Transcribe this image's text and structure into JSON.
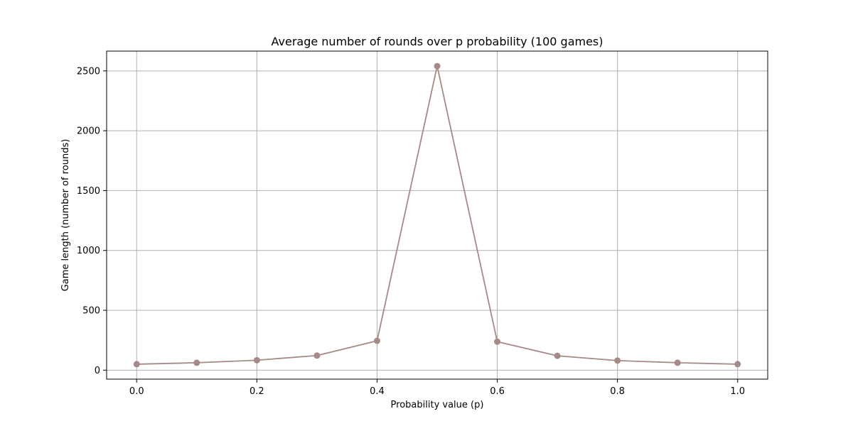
{
  "chart_data": {
    "type": "line",
    "title": "Average number of rounds over p probability (100 games)",
    "xlabel": "Probability value (p)",
    "ylabel": "Game length (number of rounds)",
    "x": [
      0.0,
      0.1,
      0.2,
      0.3,
      0.4,
      0.5,
      0.6,
      0.7,
      0.8,
      0.9,
      1.0
    ],
    "series": [
      {
        "values": [
          50,
          62,
          83,
          122,
          245,
          2540,
          238,
          120,
          80,
          62,
          50
        ]
      }
    ],
    "xlim": [
      -0.05,
      1.05
    ],
    "ylim": [
      -75,
      2665
    ],
    "xticks": [
      0.0,
      0.2,
      0.4,
      0.6,
      0.8,
      1.0
    ],
    "xtick_labels": [
      "0.0",
      "0.2",
      "0.4",
      "0.6",
      "0.8",
      "1.0"
    ],
    "yticks": [
      0,
      500,
      1000,
      1500,
      2000,
      2500
    ],
    "ytick_labels": [
      "0",
      "500",
      "1000",
      "1500",
      "2000",
      "2500"
    ],
    "grid": true,
    "line_color": "#a68a87",
    "marker_color": "#a68a87",
    "marker": "circle",
    "legend": "none"
  }
}
